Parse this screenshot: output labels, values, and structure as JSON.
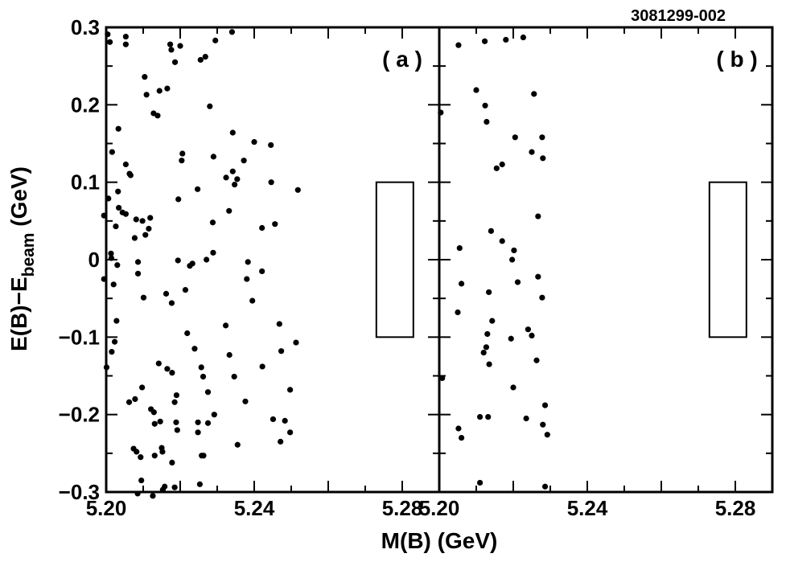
{
  "figure_id": "3081299-002",
  "colors": {
    "points": "#000000",
    "frame": "#000000",
    "background": "#ffffff"
  },
  "chart_data": {
    "type": "scatter",
    "xlabel": "M(B) (GeV)",
    "ylabel": {
      "main": "E(B)−E",
      "sub": "beam",
      "tail": " (GeV)"
    },
    "xlim": [
      5.2,
      5.29
    ],
    "ylim": [
      -0.3,
      0.3
    ],
    "grid": false,
    "x_ticks": [
      "5.20",
      "5.24",
      "5.28"
    ],
    "y_ticks": [
      "−0.3",
      "−0.2",
      "−0.1",
      "0",
      "0.1",
      "0.2",
      "0.3"
    ],
    "panels": [
      {
        "label": "( a )",
        "signal_box": {
          "x": [
            5.273,
            5.283
          ],
          "y": [
            -0.1,
            0.1
          ]
        },
        "points": [
          [
            5.2004,
            0.291
          ],
          [
            5.201,
            0.281
          ],
          [
            5.2053,
            0.288
          ],
          [
            5.2053,
            0.278
          ],
          [
            5.2104,
            0.236
          ],
          [
            5.2109,
            0.213
          ],
          [
            5.2173,
            0.278
          ],
          [
            5.2176,
            0.271
          ],
          [
            5.2186,
            0.255
          ],
          [
            5.2128,
            0.189
          ],
          [
            5.2139,
            0.186
          ],
          [
            5.2144,
            0.218
          ],
          [
            5.2165,
            0.221
          ],
          [
            5.22,
            0.276
          ],
          [
            5.2255,
            0.258
          ],
          [
            5.2268,
            0.262
          ],
          [
            5.2295,
            0.283
          ],
          [
            5.234,
            0.294
          ],
          [
            5.228,
            0.198
          ],
          [
            5.2033,
            0.169
          ],
          [
            5.2016,
            0.139
          ],
          [
            5.2053,
            0.123
          ],
          [
            5.2063,
            0.111
          ],
          [
            5.2066,
            0.109
          ],
          [
            5.2032,
            0.088
          ],
          [
            5.2006,
            0.079
          ],
          [
            5.1994,
            0.057
          ],
          [
            5.2034,
            0.067
          ],
          [
            5.2044,
            0.061
          ],
          [
            5.2053,
            0.059
          ],
          [
            5.2026,
            0.043
          ],
          [
            5.2013,
            0.008
          ],
          [
            5.2014,
            0.002
          ],
          [
            5.203,
            -0.007
          ],
          [
            5.2081,
            0.052
          ],
          [
            5.2098,
            0.05
          ],
          [
            5.2119,
            0.054
          ],
          [
            5.2115,
            0.04
          ],
          [
            5.2106,
            0.032
          ],
          [
            5.2077,
            0.028
          ],
          [
            5.2086,
            -0.003
          ],
          [
            5.2086,
            -0.018
          ],
          [
            5.2101,
            -0.049
          ],
          [
            5.2162,
            -0.044
          ],
          [
            5.2204,
            0.128
          ],
          [
            5.2206,
            0.137
          ],
          [
            5.2247,
            0.091
          ],
          [
            5.229,
            0.133
          ],
          [
            5.2288,
            0.048
          ],
          [
            5.2289,
            0.009
          ],
          [
            5.2195,
            0.078
          ],
          [
            5.2226,
            -0.008
          ],
          [
            5.2233,
            -0.005
          ],
          [
            5.2194,
            -0.001
          ],
          [
            5.2214,
            -0.039
          ],
          [
            5.2177,
            -0.056
          ],
          [
            5.2324,
            0.106
          ],
          [
            5.2342,
            0.114
          ],
          [
            5.2354,
            0.104
          ],
          [
            5.2347,
            0.097
          ],
          [
            5.2372,
            0.128
          ],
          [
            5.24,
            0.152
          ],
          [
            5.2445,
            0.148
          ],
          [
            5.2342,
            0.164
          ],
          [
            5.2332,
            0.063
          ],
          [
            5.2383,
            -0.003
          ],
          [
            5.238,
            -0.025
          ],
          [
            5.2395,
            -0.053
          ],
          [
            5.2271,
            0.0
          ],
          [
            5.1994,
            -0.025
          ],
          [
            5.199,
            -0.068
          ],
          [
            5.202,
            -0.032
          ],
          [
            5.2028,
            -0.079
          ],
          [
            5.2023,
            -0.106
          ],
          [
            5.2015,
            -0.119
          ],
          [
            5.2001,
            -0.139
          ],
          [
            5.2062,
            -0.184
          ],
          [
            5.2078,
            -0.18
          ],
          [
            5.2097,
            -0.165
          ],
          [
            5.2142,
            -0.134
          ],
          [
            5.2165,
            -0.141
          ],
          [
            5.2219,
            -0.095
          ],
          [
            5.2239,
            -0.115
          ],
          [
            5.2257,
            -0.139
          ],
          [
            5.2262,
            -0.151
          ],
          [
            5.2275,
            -0.171
          ],
          [
            5.2292,
            -0.2
          ],
          [
            5.2275,
            -0.211
          ],
          [
            5.2323,
            -0.085
          ],
          [
            5.2333,
            -0.123
          ],
          [
            5.2346,
            -0.151
          ],
          [
            5.219,
            -0.175
          ],
          [
            5.2185,
            -0.184
          ],
          [
            5.2189,
            -0.21
          ],
          [
            5.2192,
            -0.22
          ],
          [
            5.2121,
            -0.193
          ],
          [
            5.2129,
            -0.197
          ],
          [
            5.2131,
            -0.212
          ],
          [
            5.2146,
            -0.209
          ],
          [
            5.2178,
            -0.146
          ],
          [
            5.215,
            -0.243
          ],
          [
            5.2152,
            -0.248
          ],
          [
            5.2074,
            -0.244
          ],
          [
            5.2082,
            -0.248
          ],
          [
            5.2093,
            -0.255
          ],
          [
            5.2131,
            -0.253
          ],
          [
            5.2178,
            -0.262
          ],
          [
            5.2248,
            -0.21
          ],
          [
            5.2248,
            -0.223
          ],
          [
            5.2258,
            -0.253
          ],
          [
            5.2263,
            -0.253
          ],
          [
            5.2253,
            -0.29
          ],
          [
            5.2158,
            -0.293
          ],
          [
            5.2153,
            -0.297
          ],
          [
            5.2185,
            -0.294
          ],
          [
            5.2126,
            -0.305
          ],
          [
            5.2095,
            -0.285
          ],
          [
            5.2085,
            -0.302
          ],
          [
            5.2355,
            -0.239
          ],
          [
            5.2376,
            -0.183
          ],
          [
            5.2422,
            -0.138
          ],
          [
            5.2451,
            -0.206
          ],
          [
            5.2497,
            -0.223
          ],
          [
            5.2483,
            -0.208
          ],
          [
            5.2471,
            -0.235
          ],
          [
            5.2473,
            -0.118
          ],
          [
            5.2513,
            -0.107
          ],
          [
            5.2518,
            0.09
          ],
          [
            5.2497,
            -0.168
          ],
          [
            5.2468,
            -0.083
          ],
          [
            5.2456,
            0.046
          ],
          [
            5.2421,
            0.041
          ],
          [
            5.2421,
            -0.015
          ],
          [
            5.2446,
            0.1
          ]
        ]
      },
      {
        "label": "( b )",
        "signal_box": {
          "x": [
            5.273,
            5.283
          ],
          "y": [
            -0.1,
            0.1
          ]
        },
        "points": [
          [
            5.2004,
            0.19
          ],
          [
            5.2052,
            0.277
          ],
          [
            5.2123,
            0.282
          ],
          [
            5.218,
            0.284
          ],
          [
            5.2227,
            0.287
          ],
          [
            5.21,
            0.219
          ],
          [
            5.2128,
            0.178
          ],
          [
            5.2124,
            0.199
          ],
          [
            5.2256,
            0.214
          ],
          [
            5.225,
            0.139
          ],
          [
            5.2205,
            0.158
          ],
          [
            5.217,
            0.123
          ],
          [
            5.2155,
            0.118
          ],
          [
            5.2055,
            0.015
          ],
          [
            5.217,
            0.024
          ],
          [
            5.206,
            -0.031
          ],
          [
            5.214,
            0.037
          ],
          [
            5.2143,
            -0.079
          ],
          [
            5.2134,
            -0.042
          ],
          [
            5.213,
            -0.096
          ],
          [
            5.2127,
            -0.113
          ],
          [
            5.212,
            -0.12
          ],
          [
            5.2008,
            -0.153
          ],
          [
            5.205,
            -0.068
          ],
          [
            5.2135,
            -0.135
          ],
          [
            5.211,
            -0.203
          ],
          [
            5.2052,
            -0.218
          ],
          [
            5.206,
            -0.23
          ],
          [
            5.211,
            -0.288
          ],
          [
            5.2197,
            0.0
          ],
          [
            5.2202,
            0.012
          ],
          [
            5.2194,
            -0.102
          ],
          [
            5.2212,
            -0.029
          ],
          [
            5.22,
            -0.165
          ],
          [
            5.224,
            -0.09
          ],
          [
            5.225,
            -0.098
          ],
          [
            5.2263,
            -0.13
          ],
          [
            5.2267,
            0.056
          ],
          [
            5.2267,
            -0.022
          ],
          [
            5.2278,
            -0.049
          ],
          [
            5.2235,
            -0.205
          ],
          [
            5.2278,
            0.158
          ],
          [
            5.228,
            0.131
          ],
          [
            5.228,
            -0.213
          ],
          [
            5.2286,
            -0.188
          ],
          [
            5.2292,
            -0.226
          ],
          [
            5.2286,
            -0.293
          ],
          [
            5.2132,
            -0.203
          ]
        ]
      }
    ]
  }
}
